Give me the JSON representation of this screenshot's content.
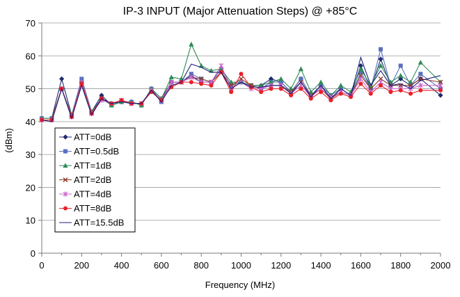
{
  "chart_data": {
    "type": "line",
    "title": "IP-3 INPUT (Major Attenuation Steps) @ +85°C",
    "xlabel": "Frequency (MHz)",
    "ylabel": "(dBm)",
    "xlim": [
      0,
      2000
    ],
    "ylim": [
      0,
      70
    ],
    "x_ticks": [
      0,
      200,
      400,
      600,
      800,
      1000,
      1200,
      1400,
      1600,
      1800,
      2000
    ],
    "y_ticks": [
      0,
      10,
      20,
      30,
      40,
      50,
      60,
      70
    ],
    "grid": "horizontal",
    "legend_position": "lower-left",
    "x": [
      0,
      50,
      100,
      150,
      200,
      250,
      300,
      350,
      400,
      450,
      500,
      550,
      600,
      650,
      700,
      750,
      800,
      850,
      900,
      950,
      1000,
      1050,
      1100,
      1150,
      1200,
      1250,
      1300,
      1350,
      1400,
      1450,
      1500,
      1550,
      1600,
      1650,
      1700,
      1750,
      1800,
      1850,
      1900,
      2000
    ],
    "series": [
      {
        "name": "ATT=0dB",
        "color": "#1f2a6b",
        "marker": "diamond",
        "values": [
          41,
          41,
          53,
          42,
          52,
          43,
          48,
          45,
          46,
          46,
          45,
          50,
          47,
          52,
          52,
          54,
          52,
          52,
          56,
          51,
          52,
          51,
          51,
          53,
          52,
          49,
          53,
          48,
          51,
          47,
          50,
          48,
          57,
          50,
          59,
          51,
          53,
          51,
          53,
          48
        ]
      },
      {
        "name": "ATT=0.5dB",
        "color": "#5a6fbf",
        "marker": "square",
        "values": [
          41,
          41,
          50,
          42,
          53,
          43,
          47,
          45,
          46,
          46,
          45,
          50,
          46,
          52,
          52,
          54.5,
          53,
          52,
          56,
          51,
          52,
          51,
          50,
          52,
          52,
          49,
          53,
          48,
          51,
          48,
          50,
          48,
          55,
          50,
          62,
          51,
          57,
          51,
          54.5,
          50
        ]
      },
      {
        "name": "ATT=1dB",
        "color": "#2e8b57",
        "marker": "triangle",
        "values": [
          41,
          41,
          50,
          42,
          52,
          43,
          47,
          45,
          46,
          46,
          45,
          50,
          47,
          53.5,
          53,
          63.5,
          57,
          55.5,
          56,
          52,
          52,
          51,
          51,
          52,
          53,
          50,
          56,
          49,
          52,
          48,
          51,
          49,
          56,
          51,
          57,
          52,
          54,
          52,
          58,
          52
        ]
      },
      {
        "name": "ATT=2dB",
        "color": "#8b3a2a",
        "marker": "x",
        "values": [
          40.5,
          40.5,
          50,
          41.5,
          52,
          42.5,
          47,
          45.5,
          46.5,
          45.5,
          45.5,
          49.5,
          46.5,
          52,
          52,
          53.5,
          53,
          52,
          55,
          51,
          53,
          51,
          50,
          51,
          51,
          49,
          52,
          48,
          50,
          47,
          49,
          48,
          54,
          50,
          53,
          51,
          51,
          51,
          53,
          52
        ]
      },
      {
        "name": "ATT=4dB",
        "color": "#cc66cc",
        "marker": "star",
        "values": [
          40.5,
          40.5,
          50,
          41.5,
          52,
          42.5,
          46.5,
          45.5,
          46.5,
          45.5,
          45.5,
          49.5,
          46.5,
          52,
          52,
          53.5,
          52,
          52,
          57,
          50,
          52,
          50,
          50,
          51,
          51,
          48.5,
          51,
          47.5,
          50,
          47.5,
          49,
          48,
          53,
          49,
          52,
          50,
          50,
          50,
          51,
          51
        ]
      },
      {
        "name": "ATT=8dB",
        "color": "#e8202a",
        "marker": "circle",
        "values": [
          40.5,
          40.5,
          50,
          41.5,
          51.5,
          42.5,
          47,
          45.5,
          46.5,
          45.5,
          45.5,
          49,
          46.5,
          50.5,
          52,
          52,
          51.5,
          51,
          55,
          49,
          54.5,
          50.5,
          49,
          50,
          50,
          48,
          50,
          47,
          49,
          46.5,
          48.5,
          47.5,
          51.5,
          48.5,
          51,
          49,
          49.5,
          48.5,
          49.5,
          49.5
        ]
      },
      {
        "name": "ATT=15.5dB",
        "color": "#1c1c7a",
        "marker": "none",
        "values": [
          40.5,
          40,
          50,
          41,
          51,
          42,
          47,
          45.5,
          46,
          45.5,
          45.5,
          49.5,
          46,
          51,
          52,
          57.5,
          56.5,
          55,
          55,
          50,
          52,
          50.5,
          50.5,
          51,
          51,
          48.5,
          52,
          47.5,
          51,
          47,
          50,
          48,
          59.5,
          51,
          55.5,
          51,
          51.5,
          50,
          52.5,
          54
        ]
      }
    ]
  }
}
